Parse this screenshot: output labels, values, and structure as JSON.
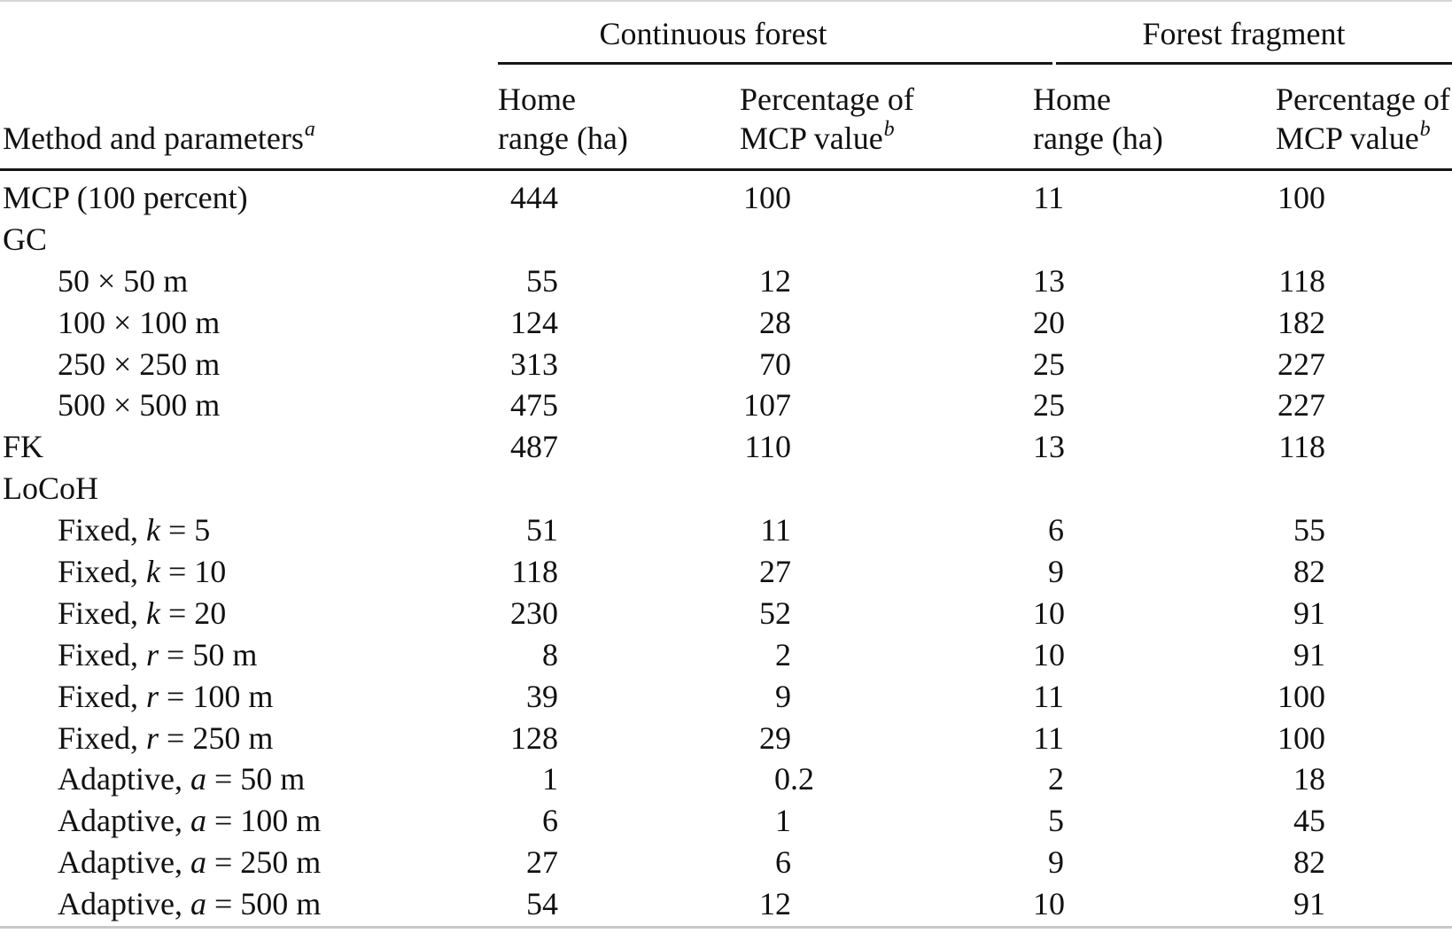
{
  "table": {
    "group_headers": [
      "Continuous forest",
      "Forest fragment"
    ],
    "method_header": {
      "text": "Method and parameters",
      "sup": "a"
    },
    "columns": [
      {
        "line1": "Home",
        "line2": "range (ha)",
        "sup": ""
      },
      {
        "line1": "Percentage of",
        "line2": "MCP value",
        "sup": "b"
      },
      {
        "line1": "Home",
        "line2": "range (ha)",
        "sup": ""
      },
      {
        "line1": "Percentage of",
        "line2": "MCP value",
        "sup": "b"
      }
    ],
    "rows": [
      {
        "pre": "MCP (100 percent)",
        "var": "",
        "post": "",
        "indent": false,
        "values": [
          "444",
          "100",
          "11",
          "100"
        ]
      },
      {
        "pre": "GC",
        "var": "",
        "post": "",
        "indent": false,
        "values": [
          "",
          "",
          "",
          ""
        ]
      },
      {
        "pre": "50 × 50 m",
        "var": "",
        "post": "",
        "indent": true,
        "values": [
          "55",
          "12",
          "13",
          "118"
        ]
      },
      {
        "pre": "100 × 100 m",
        "var": "",
        "post": "",
        "indent": true,
        "values": [
          "124",
          "28",
          "20",
          "182"
        ]
      },
      {
        "pre": "250 × 250 m",
        "var": "",
        "post": "",
        "indent": true,
        "values": [
          "313",
          "70",
          "25",
          "227"
        ]
      },
      {
        "pre": "500 × 500 m",
        "var": "",
        "post": "",
        "indent": true,
        "values": [
          "475",
          "107",
          "25",
          "227"
        ]
      },
      {
        "pre": "FK",
        "var": "",
        "post": "",
        "indent": false,
        "values": [
          "487",
          "110",
          "13",
          "118"
        ]
      },
      {
        "pre": "LoCoH",
        "var": "",
        "post": "",
        "indent": false,
        "values": [
          "",
          "",
          "",
          ""
        ]
      },
      {
        "pre": "Fixed, ",
        "var": "k",
        "post": " = 5",
        "indent": true,
        "values": [
          "51",
          "11",
          "6",
          "55"
        ]
      },
      {
        "pre": "Fixed, ",
        "var": "k",
        "post": " = 10",
        "indent": true,
        "values": [
          "118",
          "27",
          "9",
          "82"
        ]
      },
      {
        "pre": "Fixed, ",
        "var": "k",
        "post": " = 20",
        "indent": true,
        "values": [
          "230",
          "52",
          "10",
          "91"
        ]
      },
      {
        "pre": "Fixed, ",
        "var": "r",
        "post": " = 50 m",
        "indent": true,
        "values": [
          "8",
          "2",
          "10",
          "91"
        ]
      },
      {
        "pre": "Fixed, ",
        "var": "r",
        "post": " = 100 m",
        "indent": true,
        "values": [
          "39",
          "9",
          "11",
          "100"
        ]
      },
      {
        "pre": "Fixed, ",
        "var": "r",
        "post": " = 250 m",
        "indent": true,
        "values": [
          "128",
          "29",
          "11",
          "100"
        ]
      },
      {
        "pre": "Adaptive, ",
        "var": "a",
        "post": " = 50 m",
        "indent": true,
        "values": [
          "1",
          "0.2",
          "2",
          "18"
        ]
      },
      {
        "pre": "Adaptive, ",
        "var": "a",
        "post": " = 100 m",
        "indent": true,
        "values": [
          "6",
          "1",
          "5",
          "45"
        ]
      },
      {
        "pre": "Adaptive, ",
        "var": "a",
        "post": " = 250 m",
        "indent": true,
        "values": [
          "27",
          "6",
          "9",
          "82"
        ]
      },
      {
        "pre": "Adaptive, ",
        "var": "a",
        "post": " = 500 m",
        "indent": true,
        "values": [
          "54",
          "12",
          "10",
          "91"
        ]
      }
    ]
  }
}
